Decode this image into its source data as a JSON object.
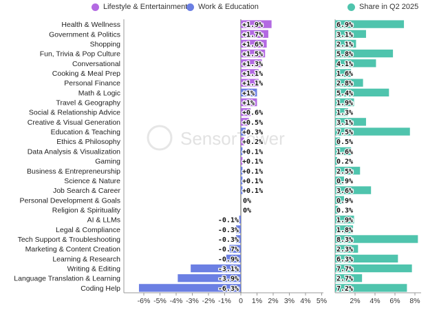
{
  "legend": {
    "lifestyle": "Lifestyle & Entertainment",
    "work": "Work & Education",
    "share": "Share in Q2 2025"
  },
  "colors": {
    "lifestyle": "#b36ae2",
    "work": "#6b7fe3",
    "share": "#4fc4ad"
  },
  "watermark": "SensorTower",
  "chart_data": [
    {
      "type": "bar",
      "orientation": "horizontal",
      "categories": [
        "Health & Wellness",
        "Government & Politics",
        "Shopping",
        "Fun, Trivia & Pop Culture",
        "Conversational",
        "Cooking & Meal Prep",
        "Personal Finance",
        "Math & Logic",
        "Travel & Geography",
        "Social & Relationship Advice",
        "Creative & Visual Generation",
        "Education & Teaching",
        "Ethics & Philosophy",
        "Data Analysis & Visualization",
        "Gaming",
        "Business & Entrepreneurship",
        "Science & Nature",
        "Job Search & Career",
        "Personal Development & Goals",
        "Religion & Spirituality",
        "AI & LLMs",
        "Legal & Compliance",
        "Tech Support & Troubleshooting",
        "Marketing & Content Creation",
        "Learning & Research",
        "Writing & Editing",
        "Language Translation & Learning",
        "Coding Help"
      ],
      "values": [
        1.9,
        1.7,
        1.6,
        1.5,
        1.3,
        1.1,
        1.1,
        1.0,
        1.0,
        0.6,
        0.5,
        0.3,
        0.2,
        0.1,
        0.1,
        0.1,
        0.1,
        0.1,
        0,
        0,
        -0.1,
        -0.3,
        -0.3,
        -0.7,
        -0.9,
        -3.1,
        -3.9,
        -6.3
      ],
      "labels": [
        "+1.9%",
        "+1.7%",
        "+1.6%",
        "+1.5%",
        "+1.3%",
        "+1.1%",
        "+1.1%",
        "+1%",
        "+1%",
        "+0.6%",
        "+0.5%",
        "+0.3%",
        "+0.2%",
        "+0.1%",
        "+0.1%",
        "+0.1%",
        "+0.1%",
        "+0.1%",
        "0%",
        "0%",
        "-0.1%",
        "-0.3%",
        "-0.3%",
        "-0.7%",
        "-0.9%",
        "-3.1%",
        "-3.9%",
        "-6.3%"
      ],
      "group": [
        "Lifestyle & Entertainment",
        "Lifestyle & Entertainment",
        "Lifestyle & Entertainment",
        "Lifestyle & Entertainment",
        "Lifestyle & Entertainment",
        "Lifestyle & Entertainment",
        "Lifestyle & Entertainment",
        "Work & Education",
        "Lifestyle & Entertainment",
        "Lifestyle & Entertainment",
        "Lifestyle & Entertainment",
        "Work & Education",
        "Lifestyle & Entertainment",
        "Work & Education",
        "Lifestyle & Entertainment",
        "Work & Education",
        "Work & Education",
        "Work & Education",
        "Work & Education",
        "Lifestyle & Entertainment",
        "Work & Education",
        "Work & Education",
        "Work & Education",
        "Work & Education",
        "Work & Education",
        "Work & Education",
        "Work & Education",
        "Work & Education"
      ],
      "xlim": [
        -7,
        6
      ],
      "xticks": [
        "-6%",
        "-5%",
        "-4%",
        "-3%",
        "-2%",
        "-1%",
        "0",
        "1%",
        "2%",
        "3%",
        "4%",
        "5%"
      ],
      "xtick_values": [
        -6,
        -5,
        -4,
        -3,
        -2,
        -1,
        0,
        1,
        2,
        3,
        4,
        5
      ]
    },
    {
      "type": "bar",
      "orientation": "horizontal",
      "series_name": "Share in Q2 2025",
      "values": [
        6.9,
        3.1,
        2.1,
        5.8,
        4.1,
        1.6,
        2.8,
        5.4,
        1.9,
        1.3,
        3.1,
        7.5,
        0.5,
        1.6,
        0.2,
        2.5,
        0.9,
        3.6,
        0.9,
        0.3,
        1.9,
        1.8,
        8.3,
        2.3,
        6.3,
        7.7,
        2.7,
        7.2
      ],
      "labels": [
        "6.9%",
        "3.1%",
        "2.1%",
        "5.8%",
        "4.1%",
        "1.6%",
        "2.8%",
        "5.4%",
        "1.9%",
        "1.3%",
        "3.1%",
        "7.5%",
        "0.5%",
        "1.6%",
        "0.2%",
        "2.5%",
        "0.9%",
        "3.6%",
        "0.9%",
        "0.3%",
        "1.9%",
        "1.8%",
        "8.3%",
        "2.3%",
        "6.3%",
        "7.7%",
        "2.7%",
        "7.2%"
      ],
      "xlim": [
        0,
        8.4
      ],
      "xticks": [
        "2%",
        "4%",
        "6%",
        "8%"
      ],
      "xtick_values": [
        2,
        4,
        6,
        8
      ]
    }
  ]
}
